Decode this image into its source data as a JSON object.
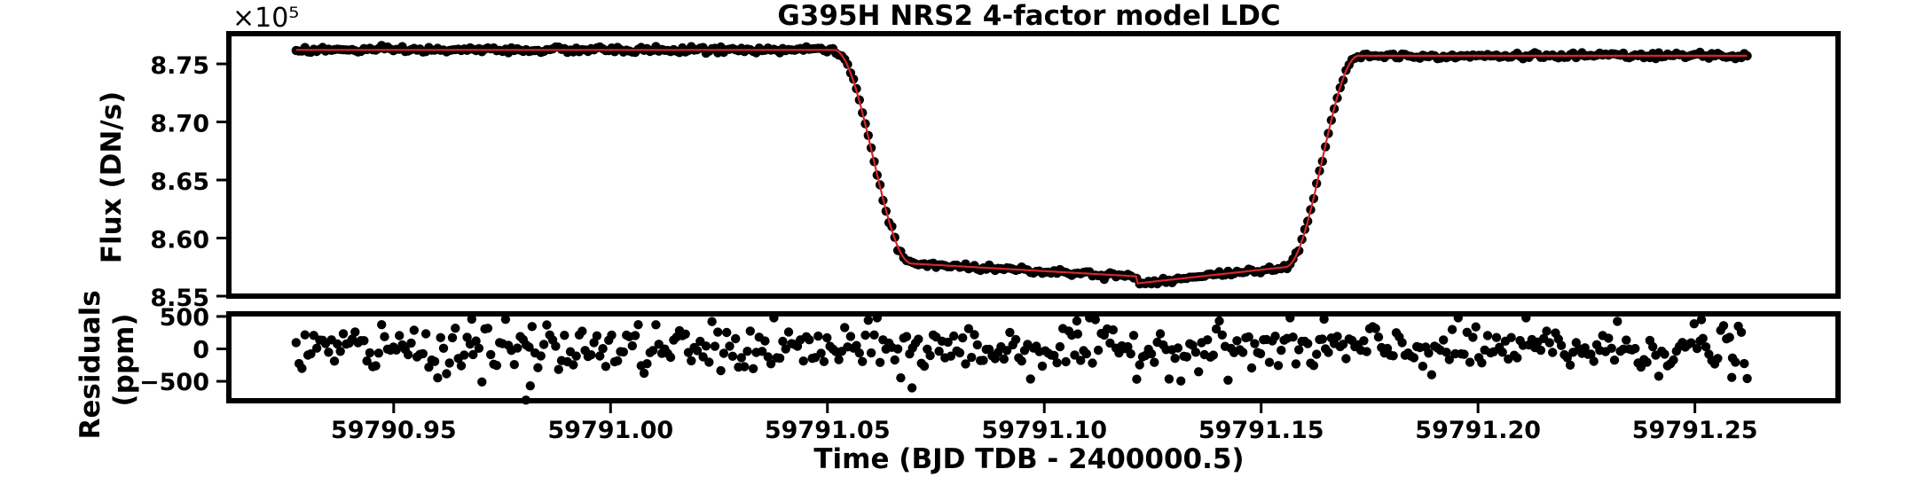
{
  "chart_data": [
    {
      "type": "scatter",
      "panel": "top",
      "title": "G395H NRS2 4-factor model LDC",
      "xlabel": "",
      "ylabel": "Flux (DN/s)",
      "y_offset_label": "×10⁵",
      "xlim": [
        59790.912,
        59791.283
      ],
      "ylim": [
        8.55,
        8.776
      ],
      "scale_factor": 100000,
      "y_ticks": [
        8.55,
        8.6,
        8.65,
        8.7,
        8.75
      ],
      "y_tick_labels": [
        "8.55",
        "8.60",
        "8.65",
        "8.70",
        "8.75"
      ],
      "grid": false,
      "legend": "none",
      "data_series": {
        "marker_color": "#000000",
        "sampling": {
          "x_start": 59790.9275,
          "x_step": 0.00068,
          "count": 493
        },
        "noise_sigma": 0.00215
      },
      "model_series": {
        "line_color": "#d62728",
        "baseline": 8.762,
        "ingress_start": 59791.0515,
        "ingress_end": 59791.0695,
        "floor_start": 8.578,
        "floor_end": 8.567,
        "floor_break": 59791.1215,
        "floor_break_drop": 8.561,
        "floor_end_rise": 8.575,
        "egress_start": 59791.1555,
        "egress_end": 59791.1725,
        "post_baseline": 8.757
      }
    },
    {
      "type": "scatter",
      "panel": "bottom",
      "xlabel": "Time (BJD TDB - 2400000.5)",
      "ylabel": "Residuals (ppm)",
      "ylabel_lines": [
        "Residuals",
        "(ppm)"
      ],
      "xlim": [
        59790.912,
        59791.283
      ],
      "ylim": [
        -800,
        540
      ],
      "y_ticks": [
        500,
        0,
        -500
      ],
      "y_tick_labels": [
        "500",
        "0",
        "−500"
      ],
      "x_ticks": [
        59790.95,
        59791.0,
        59791.05,
        59791.1,
        59791.15,
        59791.2,
        59791.25
      ],
      "x_tick_labels": [
        "59790.95",
        "59791.00",
        "59791.05",
        "59791.10",
        "59791.15",
        "59791.20",
        "59791.25"
      ],
      "grid": false,
      "legend": "none",
      "residual_sigma_ppm": 250,
      "outliers": [
        {
          "x": 59790.9805,
          "y": -790
        },
        {
          "x": 59790.9815,
          "y": -570
        },
        {
          "x": 59791.0695,
          "y": -600
        },
        {
          "x": 59791.2585,
          "y": -440
        },
        {
          "x": 59790.968,
          "y": 460
        },
        {
          "x": 59791.1075,
          "y": 430
        },
        {
          "x": 59791.1645,
          "y": 460
        },
        {
          "x": 59791.2515,
          "y": 450
        }
      ]
    }
  ]
}
